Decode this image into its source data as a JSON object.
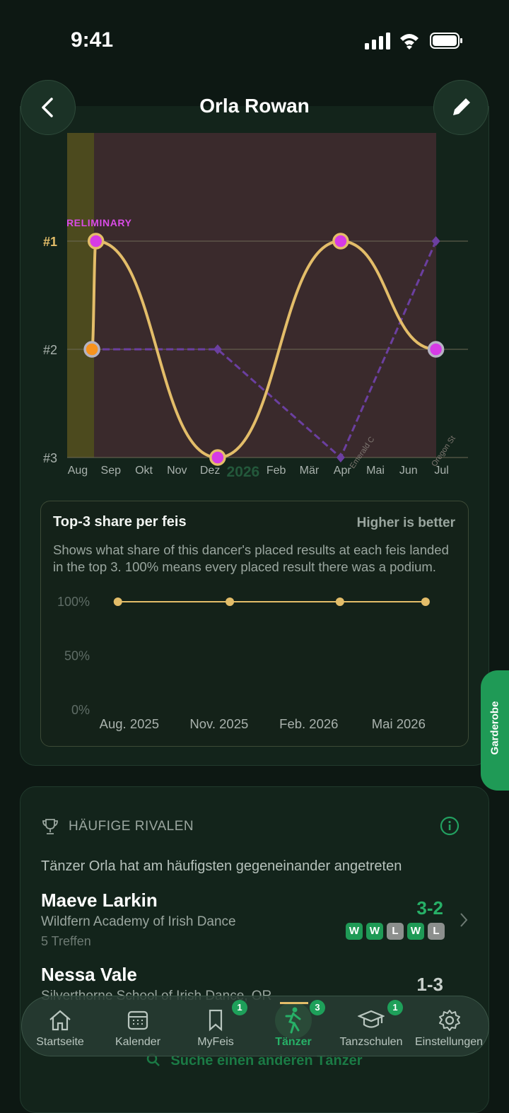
{
  "status": {
    "time": "9:41"
  },
  "header": {
    "title": "Orla Rowan"
  },
  "chart_data": [
    {
      "type": "line",
      "preliminary_label": "PRELIMINARY",
      "year_label": "2026",
      "feis_labels": [
        "Emerald C",
        "Oregon St"
      ],
      "xlim": [
        -0.32,
        11.8
      ],
      "xticks": [
        {
          "value": 0,
          "label": "Aug"
        },
        {
          "value": 1,
          "label": "Sep"
        },
        {
          "value": 2,
          "label": "Okt"
        },
        {
          "value": 3,
          "label": "Nov"
        },
        {
          "value": 4,
          "label": "Dez"
        },
        {
          "value": 6,
          "label": "Feb"
        },
        {
          "value": 7,
          "label": "Mär"
        },
        {
          "value": 8,
          "label": "Apr"
        },
        {
          "value": 9,
          "label": "Mai"
        },
        {
          "value": 10,
          "label": "Jun"
        },
        {
          "value": 11,
          "label": "Jul"
        }
      ],
      "year_x": 5,
      "ylim": [
        3,
        0
      ],
      "yticks": [
        {
          "value": 1,
          "label": "#1"
        },
        {
          "value": 2,
          "label": "#2"
        },
        {
          "value": 3,
          "label": "#3"
        }
      ],
      "grid": true,
      "series": [
        {
          "color": "#e3bd69",
          "style": "smooth",
          "x": [
            0.43,
            0.55,
            4.23,
            7.95,
            10.83
          ],
          "values": [
            2,
            1,
            3,
            1,
            2
          ],
          "marker_colors": [
            "#f7931e",
            "#d63be6",
            "#d63be6",
            "#d63be6",
            "#d63be6"
          ]
        },
        {
          "color": "#6b3fa0",
          "style": "dashed",
          "x": [
            0.43,
            4.23,
            7.95,
            10.83
          ],
          "values": [
            2,
            2,
            3,
            1
          ]
        }
      ]
    },
    {
      "type": "line",
      "title": "Top-3 share per feis",
      "note": "Higher is better",
      "description": "Shows what share of this dancer's placed results at each feis landed in the top 3. 100% means every placed result there was a podium.",
      "xlim": [
        -1.13,
        10.8
      ],
      "xticks": [
        {
          "value": 0,
          "label": "Aug. 2025"
        },
        {
          "value": 3,
          "label": "Nov. 2025"
        },
        {
          "value": 6,
          "label": "Feb. 2026"
        },
        {
          "value": 9,
          "label": "Mai 2026"
        }
      ],
      "ylim": [
        0,
        100
      ],
      "yticks": [
        {
          "value": 100,
          "label": "100%"
        },
        {
          "value": 50,
          "label": "50%"
        },
        {
          "value": 0,
          "label": "0%"
        }
      ],
      "series": [
        {
          "color": "#e3bd69",
          "x": [
            -0.38,
            3.36,
            7.04,
            9.9
          ],
          "values": [
            100,
            100,
            100,
            100
          ]
        }
      ]
    }
  ],
  "rivals": {
    "title": "HÄUFIGE RIVALEN",
    "subtitle": "Tänzer Orla hat am häufigsten gegeneinander angetreten",
    "items": [
      {
        "name": "Maeve Larkin",
        "school": "Wildfern Academy of Irish Dance",
        "meetings": "5 Treffen",
        "record": "3-2",
        "results": [
          "W",
          "W",
          "L",
          "W",
          "L"
        ]
      },
      {
        "name": "Nessa Vale",
        "school": "Silverthorne School of Irish Dance, OR",
        "record": "1-3"
      }
    ],
    "search": "Suche einen anderen Tänzer"
  },
  "side_tab": "Garderobe",
  "tabs": [
    {
      "label": "Startseite"
    },
    {
      "label": "Kalender"
    },
    {
      "label": "MyFeis",
      "badge": "1"
    },
    {
      "label": "Tänzer",
      "badge": "3"
    },
    {
      "label": "Tanzschulen",
      "badge": "1"
    },
    {
      "label": "Einstellungen"
    }
  ]
}
